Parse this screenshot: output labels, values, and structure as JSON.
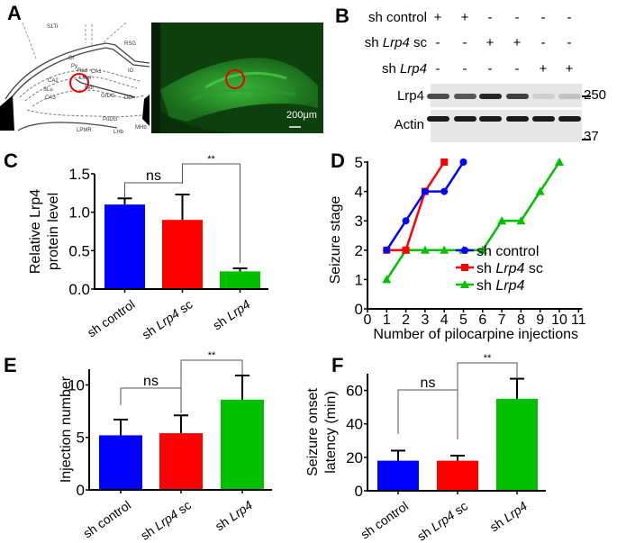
{
  "panels": {
    "A": {
      "label": "A",
      "atlas_labels": [
        "S1Tr",
        "RSG",
        "Or",
        "Py",
        "Rad",
        "CA1",
        "LMol",
        "IG",
        "CA2",
        "SLu",
        "Mol",
        "CA3",
        "GrDG",
        "DG",
        "PoDG",
        "LPMR",
        "MHb",
        "LHb"
      ],
      "scale_bar": "200μm"
    },
    "B": {
      "label": "B",
      "rows": [
        {
          "prefix": "sh control",
          "italic": "",
          "suffix": "",
          "signs": [
            "+",
            "+",
            "-",
            "-",
            "-",
            "-"
          ]
        },
        {
          "prefix": "sh ",
          "italic": "Lrp4",
          "suffix": " sc",
          "signs": [
            "-",
            "-",
            "+",
            "+",
            "-",
            "-"
          ]
        },
        {
          "prefix": "sh ",
          "italic": "Lrp4",
          "suffix": "",
          "signs": [
            "-",
            "-",
            "-",
            "-",
            "+",
            "+"
          ]
        }
      ],
      "blots": [
        {
          "name": "Lrp4",
          "band_intensity": [
            0.75,
            0.7,
            0.9,
            0.8,
            0.2,
            0.25
          ]
        },
        {
          "name": "Actin",
          "band_intensity": [
            0.95,
            0.95,
            0.95,
            0.95,
            0.95,
            0.95
          ]
        }
      ],
      "markers": [
        "250",
        "37"
      ]
    },
    "C": {
      "label": "C"
    },
    "D": {
      "label": "D"
    },
    "E": {
      "label": "E"
    },
    "F": {
      "label": "F"
    }
  },
  "colors": {
    "blue": "#0000ff",
    "red": "#ff0000",
    "green": "#00c000"
  },
  "chart_data": [
    {
      "id": "C",
      "type": "bar",
      "categories": [
        "sh control",
        "sh Lrp4 sc",
        "sh Lrp4"
      ],
      "category_parts": [
        [
          "sh control",
          ""
        ],
        [
          "sh ",
          "Lrp4",
          " sc"
        ],
        [
          "sh ",
          "Lrp4",
          ""
        ]
      ],
      "values": [
        1.1,
        0.9,
        0.23
      ],
      "errors": [
        0.08,
        0.33,
        0.04
      ],
      "ylabel": [
        "Relative Lrp4",
        "protein level"
      ],
      "ylim": [
        0,
        1.5
      ],
      "yticks": [
        "0.0",
        "0.5",
        "1.0",
        "1.5"
      ],
      "ytick_values": [
        0,
        0.5,
        1.0,
        1.5
      ],
      "significance": [
        {
          "from": 0,
          "to": 1,
          "text": "ns"
        },
        {
          "from": 1,
          "to": 2,
          "text": "**"
        }
      ]
    },
    {
      "id": "D",
      "type": "line",
      "xlabel": "Number of pilocarpine injections",
      "ylabel": "Seizure stage",
      "xlim": [
        0,
        11
      ],
      "ylim": [
        0,
        5
      ],
      "xticks": [
        "0",
        "1",
        "2",
        "3",
        "4",
        "5",
        "6",
        "7",
        "8",
        "9",
        "10",
        "11"
      ],
      "yticks": [
        "0",
        "1",
        "2",
        "3",
        "4",
        "5"
      ],
      "legend_position": "lower-right",
      "series": [
        {
          "name": "sh control",
          "name_parts": [
            "sh control",
            "",
            ""
          ],
          "marker": "circle",
          "color": "#0000ff",
          "x": [
            1,
            2,
            3,
            4,
            5
          ],
          "y": [
            2,
            3,
            4,
            4,
            5
          ]
        },
        {
          "name": "sh Lrp4 sc",
          "name_parts": [
            "sh ",
            "Lrp4",
            " sc"
          ],
          "marker": "square",
          "color": "#ff0000",
          "x": [
            1,
            2,
            3,
            4
          ],
          "y": [
            2,
            2,
            4,
            5
          ]
        },
        {
          "name": "sh Lrp4",
          "name_parts": [
            "sh ",
            "Lrp4",
            ""
          ],
          "marker": "triangle",
          "color": "#00c000",
          "x": [
            1,
            2,
            3,
            4,
            5,
            6,
            7,
            8,
            9,
            10
          ],
          "y": [
            1,
            2,
            2,
            2,
            2,
            2,
            3,
            3,
            4,
            5
          ]
        }
      ]
    },
    {
      "id": "E",
      "type": "bar",
      "categories": [
        "sh control",
        "sh Lrp4 sc",
        "sh Lrp4"
      ],
      "category_parts": [
        [
          "sh control",
          ""
        ],
        [
          "sh ",
          "Lrp4",
          " sc"
        ],
        [
          "sh ",
          "Lrp4",
          ""
        ]
      ],
      "values": [
        5.2,
        5.4,
        8.6
      ],
      "errors": [
        1.5,
        1.7,
        2.3
      ],
      "ylabel": [
        "Injection number"
      ],
      "ylim": [
        0,
        11.5
      ],
      "yticks": [
        "0",
        "5",
        "10"
      ],
      "ytick_values": [
        0,
        5,
        10
      ],
      "significance": [
        {
          "from": 0,
          "to": 1,
          "text": "ns"
        },
        {
          "from": 1,
          "to": 2,
          "text": "**"
        }
      ]
    },
    {
      "id": "F",
      "type": "bar",
      "categories": [
        "sh control",
        "sh Lrp4 sc",
        "sh Lrp4"
      ],
      "category_parts": [
        [
          "sh control",
          ""
        ],
        [
          "sh ",
          "Lrp4",
          " sc"
        ],
        [
          "sh ",
          "Lrp4",
          ""
        ]
      ],
      "values": [
        18,
        18,
        55
      ],
      "errors": [
        6,
        3,
        12
      ],
      "ylabel": [
        "Seizure onset",
        "latency (min)"
      ],
      "ylim": [
        0,
        70
      ],
      "yticks": [
        "0",
        "20",
        "40",
        "60"
      ],
      "ytick_values": [
        0,
        20,
        40,
        60
      ],
      "significance": [
        {
          "from": 0,
          "to": 1,
          "text": "ns"
        },
        {
          "from": 1,
          "to": 2,
          "text": "**"
        }
      ]
    }
  ]
}
